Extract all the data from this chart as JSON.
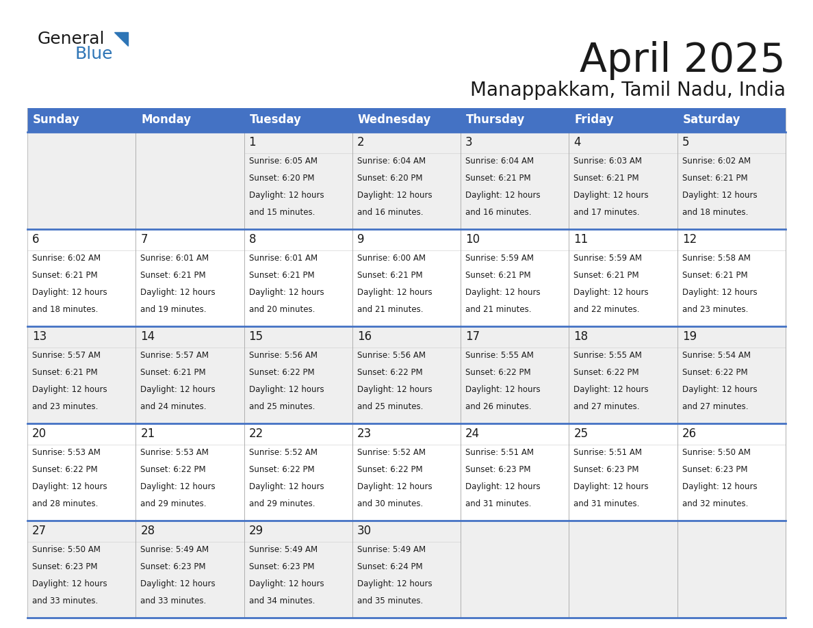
{
  "title": "April 2025",
  "subtitle": "Manappakkam, Tamil Nadu, India",
  "header_bg": "#4472C4",
  "header_text_color": "#FFFFFF",
  "cell_bg_even": "#EFEFEF",
  "cell_bg_odd": "#FFFFFF",
  "border_color_thick": "#4472C4",
  "border_color_thin": "#AAAAAA",
  "text_color": "#1a1a1a",
  "day_headers": [
    "Sunday",
    "Monday",
    "Tuesday",
    "Wednesday",
    "Thursday",
    "Friday",
    "Saturday"
  ],
  "weeks": [
    [
      {
        "day": "",
        "sunrise": "",
        "sunset": "",
        "daylight1": "",
        "daylight2": ""
      },
      {
        "day": "",
        "sunrise": "",
        "sunset": "",
        "daylight1": "",
        "daylight2": ""
      },
      {
        "day": "1",
        "sunrise": "Sunrise: 6:05 AM",
        "sunset": "Sunset: 6:20 PM",
        "daylight1": "Daylight: 12 hours",
        "daylight2": "and 15 minutes."
      },
      {
        "day": "2",
        "sunrise": "Sunrise: 6:04 AM",
        "sunset": "Sunset: 6:20 PM",
        "daylight1": "Daylight: 12 hours",
        "daylight2": "and 16 minutes."
      },
      {
        "day": "3",
        "sunrise": "Sunrise: 6:04 AM",
        "sunset": "Sunset: 6:21 PM",
        "daylight1": "Daylight: 12 hours",
        "daylight2": "and 16 minutes."
      },
      {
        "day": "4",
        "sunrise": "Sunrise: 6:03 AM",
        "sunset": "Sunset: 6:21 PM",
        "daylight1": "Daylight: 12 hours",
        "daylight2": "and 17 minutes."
      },
      {
        "day": "5",
        "sunrise": "Sunrise: 6:02 AM",
        "sunset": "Sunset: 6:21 PM",
        "daylight1": "Daylight: 12 hours",
        "daylight2": "and 18 minutes."
      }
    ],
    [
      {
        "day": "6",
        "sunrise": "Sunrise: 6:02 AM",
        "sunset": "Sunset: 6:21 PM",
        "daylight1": "Daylight: 12 hours",
        "daylight2": "and 18 minutes."
      },
      {
        "day": "7",
        "sunrise": "Sunrise: 6:01 AM",
        "sunset": "Sunset: 6:21 PM",
        "daylight1": "Daylight: 12 hours",
        "daylight2": "and 19 minutes."
      },
      {
        "day": "8",
        "sunrise": "Sunrise: 6:01 AM",
        "sunset": "Sunset: 6:21 PM",
        "daylight1": "Daylight: 12 hours",
        "daylight2": "and 20 minutes."
      },
      {
        "day": "9",
        "sunrise": "Sunrise: 6:00 AM",
        "sunset": "Sunset: 6:21 PM",
        "daylight1": "Daylight: 12 hours",
        "daylight2": "and 21 minutes."
      },
      {
        "day": "10",
        "sunrise": "Sunrise: 5:59 AM",
        "sunset": "Sunset: 6:21 PM",
        "daylight1": "Daylight: 12 hours",
        "daylight2": "and 21 minutes."
      },
      {
        "day": "11",
        "sunrise": "Sunrise: 5:59 AM",
        "sunset": "Sunset: 6:21 PM",
        "daylight1": "Daylight: 12 hours",
        "daylight2": "and 22 minutes."
      },
      {
        "day": "12",
        "sunrise": "Sunrise: 5:58 AM",
        "sunset": "Sunset: 6:21 PM",
        "daylight1": "Daylight: 12 hours",
        "daylight2": "and 23 minutes."
      }
    ],
    [
      {
        "day": "13",
        "sunrise": "Sunrise: 5:57 AM",
        "sunset": "Sunset: 6:21 PM",
        "daylight1": "Daylight: 12 hours",
        "daylight2": "and 23 minutes."
      },
      {
        "day": "14",
        "sunrise": "Sunrise: 5:57 AM",
        "sunset": "Sunset: 6:21 PM",
        "daylight1": "Daylight: 12 hours",
        "daylight2": "and 24 minutes."
      },
      {
        "day": "15",
        "sunrise": "Sunrise: 5:56 AM",
        "sunset": "Sunset: 6:22 PM",
        "daylight1": "Daylight: 12 hours",
        "daylight2": "and 25 minutes."
      },
      {
        "day": "16",
        "sunrise": "Sunrise: 5:56 AM",
        "sunset": "Sunset: 6:22 PM",
        "daylight1": "Daylight: 12 hours",
        "daylight2": "and 25 minutes."
      },
      {
        "day": "17",
        "sunrise": "Sunrise: 5:55 AM",
        "sunset": "Sunset: 6:22 PM",
        "daylight1": "Daylight: 12 hours",
        "daylight2": "and 26 minutes."
      },
      {
        "day": "18",
        "sunrise": "Sunrise: 5:55 AM",
        "sunset": "Sunset: 6:22 PM",
        "daylight1": "Daylight: 12 hours",
        "daylight2": "and 27 minutes."
      },
      {
        "day": "19",
        "sunrise": "Sunrise: 5:54 AM",
        "sunset": "Sunset: 6:22 PM",
        "daylight1": "Daylight: 12 hours",
        "daylight2": "and 27 minutes."
      }
    ],
    [
      {
        "day": "20",
        "sunrise": "Sunrise: 5:53 AM",
        "sunset": "Sunset: 6:22 PM",
        "daylight1": "Daylight: 12 hours",
        "daylight2": "and 28 minutes."
      },
      {
        "day": "21",
        "sunrise": "Sunrise: 5:53 AM",
        "sunset": "Sunset: 6:22 PM",
        "daylight1": "Daylight: 12 hours",
        "daylight2": "and 29 minutes."
      },
      {
        "day": "22",
        "sunrise": "Sunrise: 5:52 AM",
        "sunset": "Sunset: 6:22 PM",
        "daylight1": "Daylight: 12 hours",
        "daylight2": "and 29 minutes."
      },
      {
        "day": "23",
        "sunrise": "Sunrise: 5:52 AM",
        "sunset": "Sunset: 6:22 PM",
        "daylight1": "Daylight: 12 hours",
        "daylight2": "and 30 minutes."
      },
      {
        "day": "24",
        "sunrise": "Sunrise: 5:51 AM",
        "sunset": "Sunset: 6:23 PM",
        "daylight1": "Daylight: 12 hours",
        "daylight2": "and 31 minutes."
      },
      {
        "day": "25",
        "sunrise": "Sunrise: 5:51 AM",
        "sunset": "Sunset: 6:23 PM",
        "daylight1": "Daylight: 12 hours",
        "daylight2": "and 31 minutes."
      },
      {
        "day": "26",
        "sunrise": "Sunrise: 5:50 AM",
        "sunset": "Sunset: 6:23 PM",
        "daylight1": "Daylight: 12 hours",
        "daylight2": "and 32 minutes."
      }
    ],
    [
      {
        "day": "27",
        "sunrise": "Sunrise: 5:50 AM",
        "sunset": "Sunset: 6:23 PM",
        "daylight1": "Daylight: 12 hours",
        "daylight2": "and 33 minutes."
      },
      {
        "day": "28",
        "sunrise": "Sunrise: 5:49 AM",
        "sunset": "Sunset: 6:23 PM",
        "daylight1": "Daylight: 12 hours",
        "daylight2": "and 33 minutes."
      },
      {
        "day": "29",
        "sunrise": "Sunrise: 5:49 AM",
        "sunset": "Sunset: 6:23 PM",
        "daylight1": "Daylight: 12 hours",
        "daylight2": "and 34 minutes."
      },
      {
        "day": "30",
        "sunrise": "Sunrise: 5:49 AM",
        "sunset": "Sunset: 6:24 PM",
        "daylight1": "Daylight: 12 hours",
        "daylight2": "and 35 minutes."
      },
      {
        "day": "",
        "sunrise": "",
        "sunset": "",
        "daylight1": "",
        "daylight2": ""
      },
      {
        "day": "",
        "sunrise": "",
        "sunset": "",
        "daylight1": "",
        "daylight2": ""
      },
      {
        "day": "",
        "sunrise": "",
        "sunset": "",
        "daylight1": "",
        "daylight2": ""
      }
    ]
  ],
  "logo_general_color": "#1a1a1a",
  "logo_blue_color": "#2E75B6",
  "logo_triangle_color": "#2E75B6"
}
